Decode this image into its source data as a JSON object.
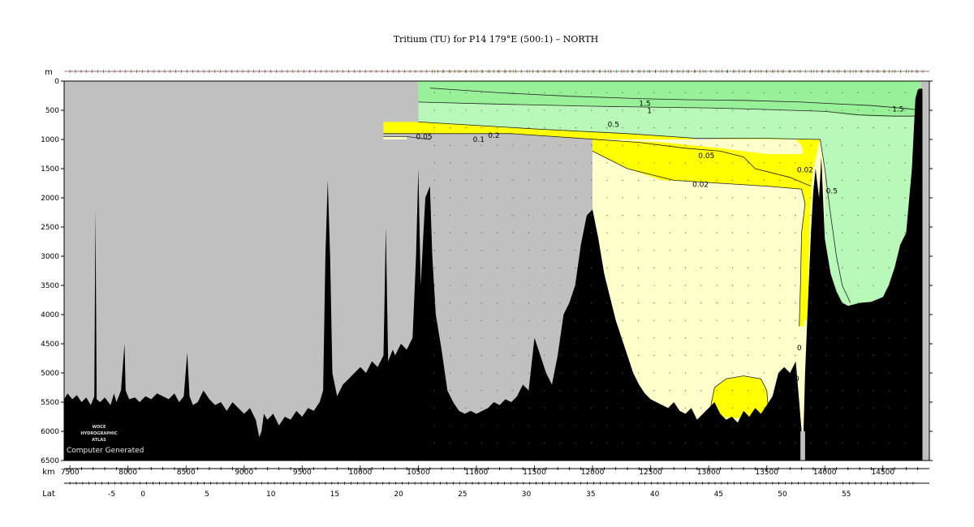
{
  "chart_data": {
    "type": "contour-section",
    "title": "Tritium (TU) for P14 179°E (500:1) – NORTH",
    "depth_unit": "m",
    "x_unit": "km",
    "lat_label": "Lat",
    "xlim": [
      7450,
      14900
    ],
    "ylim": [
      6500,
      0
    ],
    "x_ticks": [
      7500,
      8000,
      8500,
      9000,
      9500,
      10000,
      10500,
      11000,
      11500,
      12000,
      12500,
      13000,
      13500,
      14000,
      14500
    ],
    "x_tick_labels": [
      "7500",
      "8000",
      "8500",
      "9000",
      "9500",
      "10000",
      "10500",
      "11000",
      "11500",
      "12000",
      "12500",
      "13000",
      "13500",
      "14000",
      "14500"
    ],
    "y_ticks": [
      0,
      500,
      1000,
      1500,
      2000,
      2500,
      3000,
      3500,
      4000,
      4500,
      5000,
      5500,
      6000,
      6500
    ],
    "y_tick_labels": [
      "0",
      "500",
      "1000",
      "1500",
      "2000",
      "2500",
      "3000",
      "3500",
      "4000",
      "4500",
      "5000",
      "5500",
      "6000",
      "6500"
    ],
    "lat_ticks": [
      {
        "km": 7860,
        "label": "-5"
      },
      {
        "km": 8130,
        "label": "0"
      },
      {
        "km": 8680,
        "label": "5"
      },
      {
        "km": 9230,
        "label": "10"
      },
      {
        "km": 9780,
        "label": "15"
      },
      {
        "km": 10330,
        "label": "20"
      },
      {
        "km": 10880,
        "label": "25"
      },
      {
        "km": 11430,
        "label": "30"
      },
      {
        "km": 11985,
        "label": "35"
      },
      {
        "km": 12535,
        "label": "40"
      },
      {
        "km": 13085,
        "label": "45"
      },
      {
        "km": 13635,
        "label": "50"
      },
      {
        "km": 14185,
        "label": "55"
      }
    ],
    "contour_levels": [
      0.02,
      0.05,
      0.1,
      0.2,
      0.5,
      1,
      1.5
    ],
    "contour_labels": [
      {
        "text": "1.5",
        "x": 12450,
        "y": 380
      },
      {
        "text": "1",
        "x": 12490,
        "y": 510
      },
      {
        "text": "1.5",
        "x": 14630,
        "y": 480
      },
      {
        "text": "0.5",
        "x": 12180,
        "y": 740
      },
      {
        "text": "0.05",
        "x": 10550,
        "y": 950
      },
      {
        "text": "0.1",
        "x": 11020,
        "y": 1000
      },
      {
        "text": "0.2",
        "x": 11150,
        "y": 930
      },
      {
        "text": "0.05",
        "x": 12980,
        "y": 1280
      },
      {
        "text": "0.02",
        "x": 12930,
        "y": 1770
      },
      {
        "text": "0.02",
        "x": 13830,
        "y": 1520
      },
      {
        "text": "0.5",
        "x": 14060,
        "y": 1880
      },
      {
        "text": "0",
        "x": 13780,
        "y": 4570
      },
      {
        "text": "0",
        "x": 13760,
        "y": 5100
      }
    ],
    "color_bands": [
      {
        "range": ">1",
        "color": "#98f098"
      },
      {
        "range": "0.5-1",
        "color": "#b8f8b8"
      },
      {
        "range": "0.05-0.5",
        "color": "#ffff00"
      },
      {
        "range": "<0.05",
        "color": "#ffffcc"
      }
    ],
    "missing_color": "#c0c0c0",
    "land_color": "#000000",
    "bathymetry": [
      [
        7450,
        5450
      ],
      [
        7480,
        5350
      ],
      [
        7520,
        5450
      ],
      [
        7560,
        5380
      ],
      [
        7600,
        5500
      ],
      [
        7640,
        5420
      ],
      [
        7680,
        5550
      ],
      [
        7710,
        5400
      ],
      [
        7720,
        2200
      ],
      [
        7730,
        5450
      ],
      [
        7760,
        5500
      ],
      [
        7800,
        5420
      ],
      [
        7850,
        5550
      ],
      [
        7880,
        5350
      ],
      [
        7900,
        5500
      ],
      [
        7940,
        5300
      ],
      [
        7970,
        4500
      ],
      [
        7980,
        5300
      ],
      [
        8010,
        5450
      ],
      [
        8060,
        5420
      ],
      [
        8100,
        5500
      ],
      [
        8150,
        5400
      ],
      [
        8200,
        5450
      ],
      [
        8250,
        5350
      ],
      [
        8300,
        5400
      ],
      [
        8350,
        5450
      ],
      [
        8400,
        5350
      ],
      [
        8440,
        5500
      ],
      [
        8480,
        5400
      ],
      [
        8510,
        4650
      ],
      [
        8530,
        5400
      ],
      [
        8560,
        5550
      ],
      [
        8600,
        5500
      ],
      [
        8650,
        5300
      ],
      [
        8700,
        5450
      ],
      [
        8750,
        5550
      ],
      [
        8800,
        5500
      ],
      [
        8850,
        5650
      ],
      [
        8900,
        5500
      ],
      [
        8950,
        5600
      ],
      [
        9000,
        5700
      ],
      [
        9050,
        5600
      ],
      [
        9100,
        5800
      ],
      [
        9130,
        6100
      ],
      [
        9150,
        6000
      ],
      [
        9170,
        5700
      ],
      [
        9200,
        5800
      ],
      [
        9250,
        5700
      ],
      [
        9300,
        5900
      ],
      [
        9350,
        5750
      ],
      [
        9400,
        5800
      ],
      [
        9450,
        5650
      ],
      [
        9500,
        5750
      ],
      [
        9550,
        5600
      ],
      [
        9600,
        5650
      ],
      [
        9650,
        5500
      ],
      [
        9680,
        5300
      ],
      [
        9700,
        3000
      ],
      [
        9720,
        1700
      ],
      [
        9740,
        3000
      ],
      [
        9760,
        5000
      ],
      [
        9800,
        5400
      ],
      [
        9850,
        5200
      ],
      [
        9900,
        5100
      ],
      [
        9950,
        5000
      ],
      [
        10000,
        4900
      ],
      [
        10050,
        5000
      ],
      [
        10100,
        4800
      ],
      [
        10150,
        4900
      ],
      [
        10200,
        4700
      ],
      [
        10220,
        2500
      ],
      [
        10240,
        4800
      ],
      [
        10280,
        4600
      ],
      [
        10300,
        4700
      ],
      [
        10350,
        4500
      ],
      [
        10400,
        4600
      ],
      [
        10450,
        4400
      ],
      [
        10480,
        3000
      ],
      [
        10500,
        1500
      ],
      [
        10520,
        3500
      ],
      [
        10560,
        2000
      ],
      [
        10600,
        1800
      ],
      [
        10620,
        3000
      ],
      [
        10650,
        4000
      ],
      [
        10700,
        4600
      ],
      [
        10750,
        5300
      ],
      [
        10800,
        5500
      ],
      [
        10850,
        5650
      ],
      [
        10900,
        5700
      ],
      [
        10950,
        5650
      ],
      [
        11000,
        5700
      ],
      [
        11050,
        5650
      ],
      [
        11100,
        5600
      ],
      [
        11150,
        5500
      ],
      [
        11200,
        5550
      ],
      [
        11250,
        5450
      ],
      [
        11300,
        5500
      ],
      [
        11350,
        5400
      ],
      [
        11400,
        5200
      ],
      [
        11450,
        5300
      ],
      [
        11500,
        4400
      ],
      [
        11550,
        4700
      ],
      [
        11600,
        5000
      ],
      [
        11650,
        5200
      ],
      [
        11700,
        4700
      ],
      [
        11750,
        4000
      ],
      [
        11800,
        3800
      ],
      [
        11850,
        3500
      ],
      [
        11900,
        2800
      ],
      [
        11950,
        2300
      ],
      [
        12000,
        2200
      ],
      [
        12050,
        2700
      ],
      [
        12100,
        3300
      ],
      [
        12150,
        3700
      ],
      [
        12200,
        4100
      ],
      [
        12250,
        4400
      ],
      [
        12300,
        4700
      ],
      [
        12350,
        5000
      ],
      [
        12400,
        5200
      ],
      [
        12450,
        5350
      ],
      [
        12500,
        5450
      ],
      [
        12550,
        5500
      ],
      [
        12600,
        5550
      ],
      [
        12650,
        5600
      ],
      [
        12700,
        5500
      ],
      [
        12750,
        5650
      ],
      [
        12800,
        5700
      ],
      [
        12850,
        5600
      ],
      [
        12900,
        5800
      ],
      [
        12950,
        5700
      ],
      [
        13000,
        5600
      ],
      [
        13050,
        5500
      ],
      [
        13100,
        5700
      ],
      [
        13150,
        5800
      ],
      [
        13200,
        5750
      ],
      [
        13250,
        5850
      ],
      [
        13300,
        5650
      ],
      [
        13350,
        5750
      ],
      [
        13400,
        5600
      ],
      [
        13450,
        5700
      ],
      [
        13500,
        5550
      ],
      [
        13550,
        5400
      ],
      [
        13600,
        5000
      ],
      [
        13650,
        4900
      ],
      [
        13700,
        5000
      ],
      [
        13750,
        4800
      ],
      [
        13780,
        5500
      ],
      [
        13800,
        6000
      ],
      [
        13810,
        6500
      ],
      [
        13830,
        5000
      ],
      [
        13850,
        4000
      ],
      [
        13880,
        2600
      ],
      [
        13900,
        1900
      ],
      [
        13920,
        1500
      ],
      [
        13950,
        2000
      ],
      [
        13970,
        1300
      ],
      [
        14000,
        2700
      ],
      [
        14050,
        3300
      ],
      [
        14100,
        3600
      ],
      [
        14150,
        3800
      ],
      [
        14200,
        3850
      ],
      [
        14300,
        3800
      ],
      [
        14400,
        3780
      ],
      [
        14500,
        3700
      ],
      [
        14550,
        3500
      ],
      [
        14600,
        3200
      ],
      [
        14650,
        2800
      ],
      [
        14700,
        2600
      ],
      [
        14750,
        1500
      ],
      [
        14780,
        300
      ],
      [
        14800,
        150
      ],
      [
        14820,
        130
      ],
      [
        14840,
        200
      ]
    ],
    "stations_marked": true,
    "watermark": [
      "WOCE",
      "HYDROGRAPHIC",
      "ATLAS"
    ],
    "footer_note": "Computer Generated"
  }
}
